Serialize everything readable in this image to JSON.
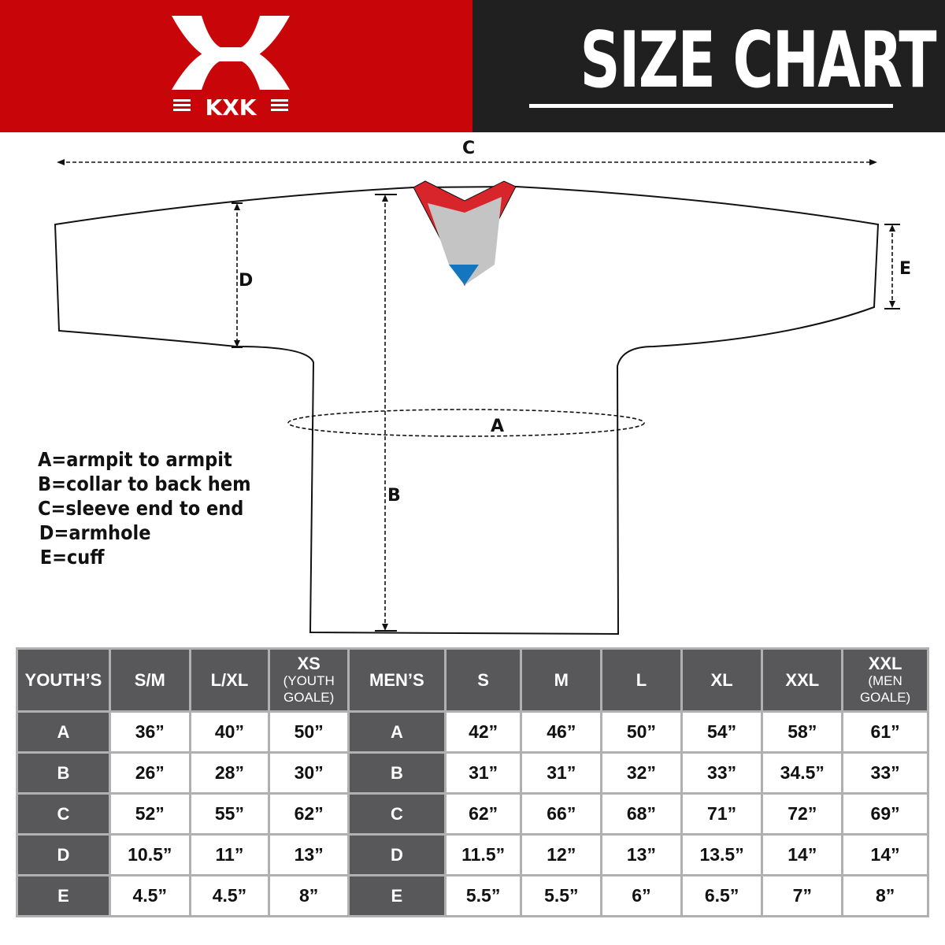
{
  "header": {
    "brand": "KXK",
    "title": "SIZE CHART",
    "brand_color": "#c8060a",
    "dark_color": "#202020"
  },
  "diagram": {
    "labels": {
      "a": "A",
      "b": "B",
      "c": "C",
      "d": "D",
      "e": "E"
    }
  },
  "legend": [
    "A=armpit to armpit",
    "B=collar to back hem",
    "C=sleeve end to end",
    "D=armhole",
    "E=cuff"
  ],
  "table": {
    "headers": [
      {
        "main": "YOUTH’S",
        "sub": ""
      },
      {
        "main": "S/M",
        "sub": ""
      },
      {
        "main": "L/XL",
        "sub": ""
      },
      {
        "main": "XS",
        "sub": "(YOUTH GOALE)"
      },
      {
        "main": "MEN’S",
        "sub": ""
      },
      {
        "main": "S",
        "sub": ""
      },
      {
        "main": "M",
        "sub": ""
      },
      {
        "main": "L",
        "sub": ""
      },
      {
        "main": "XL",
        "sub": ""
      },
      {
        "main": "XXL",
        "sub": ""
      },
      {
        "main": "XXL",
        "sub": "(MEN GOALE)"
      }
    ],
    "rows": [
      [
        "A",
        "36”",
        "40”",
        "50”",
        "A",
        "42”",
        "46”",
        "50”",
        "54”",
        "58”",
        "61”"
      ],
      [
        "B",
        "26”",
        "28”",
        "30”",
        "B",
        "31”",
        "31”",
        "32”",
        "33”",
        "34.5”",
        "33”"
      ],
      [
        "C",
        "52”",
        "55”",
        "62”",
        "C",
        "62”",
        "66”",
        "68”",
        "71”",
        "72”",
        "69”"
      ],
      [
        "D",
        "10.5”",
        "11”",
        "13”",
        "D",
        "11.5”",
        "12”",
        "13”",
        "13.5”",
        "14”",
        "14”"
      ],
      [
        "E",
        "4.5”",
        "4.5”",
        "8”",
        "E",
        "5.5”",
        "5.5”",
        "6”",
        "6.5”",
        "7”",
        "8”"
      ]
    ]
  }
}
